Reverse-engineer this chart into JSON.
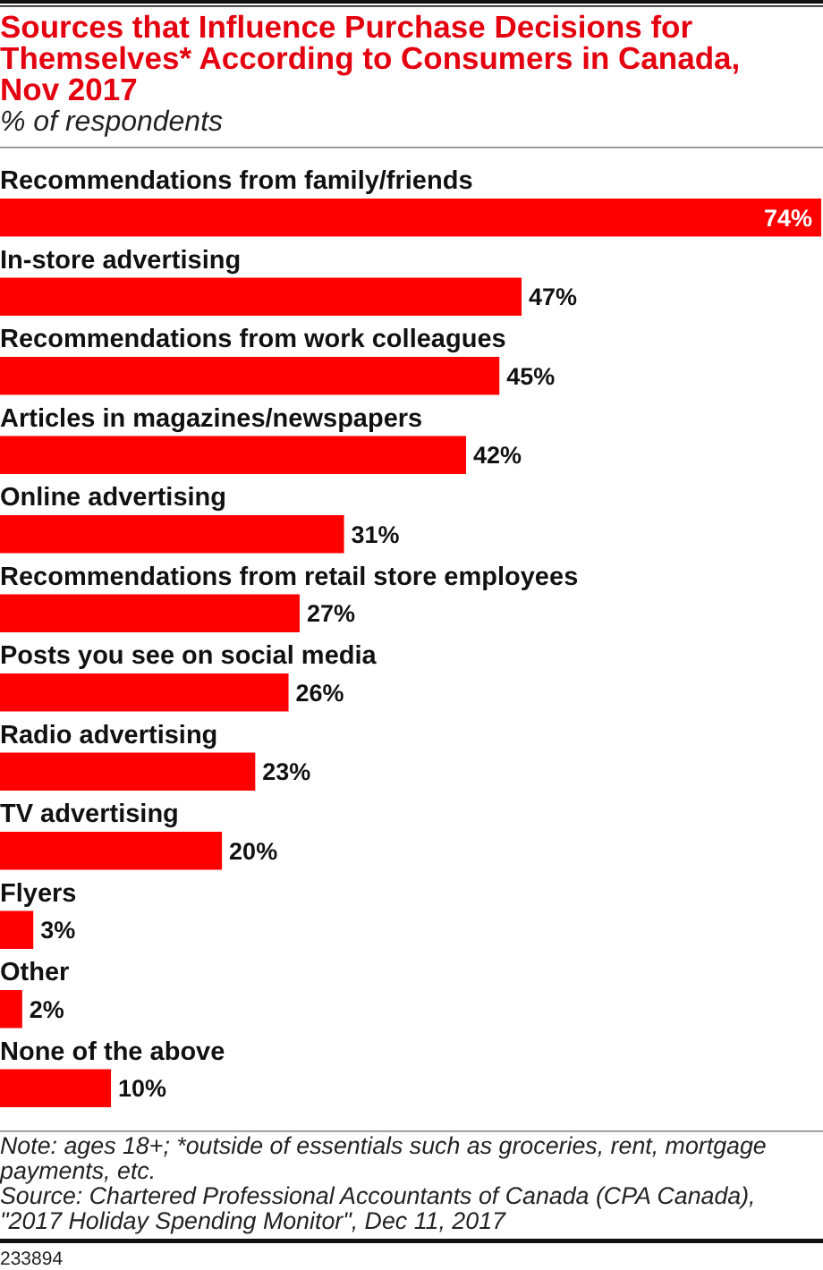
{
  "chart_data": {
    "type": "bar",
    "orientation": "horizontal",
    "title": "Sources that Influence Purchase Decisions for Themselves* According to Consumers in Canada, Nov 2017",
    "subtitle": "% of respondents",
    "categories": [
      "Recommendations from family/friends",
      "In-store advertising",
      "Recommendations from work colleagues",
      "Articles in magazines/newspapers",
      "Online advertising",
      "Recommendations from retail store employees",
      "Posts you see on social media",
      "Radio advertising",
      "TV advertising",
      "Flyers",
      "Other",
      "None of the above"
    ],
    "values": [
      74,
      47,
      45,
      42,
      31,
      27,
      26,
      23,
      20,
      3,
      2,
      10
    ],
    "value_labels": [
      "74%",
      "47%",
      "45%",
      "42%",
      "31%",
      "27%",
      "26%",
      "23%",
      "20%",
      "3%",
      "2%",
      "10%"
    ],
    "color": "#ff0000",
    "annotations": [
      "Note: ages 18+; *outside of essentials such as groceries, rent, mortgage payments, etc.",
      "Source: Chartered Professional Accountants of Canada (CPA Canada), \"2017 Holiday Spending Monitor\", Dec 11, 2017",
      "233894"
    ]
  }
}
